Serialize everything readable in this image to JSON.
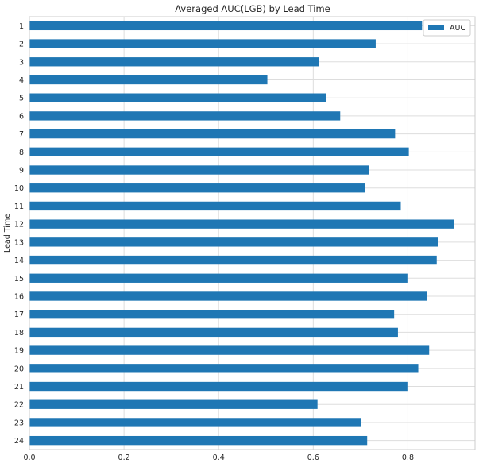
{
  "chart_data": {
    "type": "bar",
    "orientation": "horizontal",
    "title": "Averaged AUC(LGB) by Lead Time",
    "xlabel": "",
    "ylabel": "Lead Time",
    "categories": [
      "1",
      "2",
      "3",
      "4",
      "5",
      "6",
      "7",
      "8",
      "9",
      "10",
      "11",
      "12",
      "13",
      "14",
      "15",
      "16",
      "17",
      "18",
      "19",
      "20",
      "21",
      "22",
      "23",
      "24"
    ],
    "series": [
      {
        "name": "AUC",
        "color": "#1f77b4",
        "values": [
          0.83,
          0.732,
          0.612,
          0.503,
          0.628,
          0.657,
          0.773,
          0.802,
          0.717,
          0.71,
          0.785,
          0.897,
          0.864,
          0.861,
          0.799,
          0.84,
          0.771,
          0.779,
          0.845,
          0.822,
          0.799,
          0.609,
          0.701,
          0.714
        ]
      }
    ],
    "xlim": [
      0,
      0.942
    ],
    "xticks": [
      "0.0",
      "0.2",
      "0.4",
      "0.6",
      "0.8"
    ],
    "xtick_values": [
      0,
      0.2,
      0.4,
      0.6,
      0.8
    ],
    "grid": true,
    "legend_position": "top-right"
  }
}
